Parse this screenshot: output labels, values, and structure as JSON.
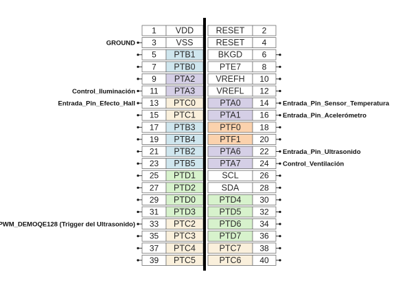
{
  "colors": {
    "white": "#ffffff",
    "green": "#d7f2cc",
    "lilac": "#d5cfe6",
    "blue": "#cfe6ee",
    "orange": "#fbd2ad",
    "cream": "#faf0dc",
    "border": "#6e6e6e",
    "divider": "#000000"
  },
  "rows": [
    {
      "left_num": "1",
      "left_sig": "VDD",
      "left_color": "white",
      "right_sig": "RESET",
      "right_color": "white",
      "right_num": "2",
      "left_lead": false,
      "right_lead": false,
      "left_ann": "",
      "right_ann": ""
    },
    {
      "left_num": "3",
      "left_sig": "VSS",
      "left_color": "white",
      "right_sig": "RESET",
      "right_color": "white",
      "right_num": "4",
      "left_lead": true,
      "right_lead": false,
      "left_ann": "GROUND",
      "right_ann": ""
    },
    {
      "left_num": "5",
      "left_sig": "PTB1",
      "left_color": "blue",
      "right_sig": "BKGD",
      "right_color": "white",
      "right_num": "6",
      "left_lead": true,
      "right_lead": true,
      "left_ann": "",
      "right_ann": ""
    },
    {
      "left_num": "7",
      "left_sig": "PTB0",
      "left_color": "blue",
      "right_sig": "PTE7",
      "right_color": "white",
      "right_num": "8",
      "left_lead": true,
      "right_lead": true,
      "left_ann": "",
      "right_ann": ""
    },
    {
      "left_num": "9",
      "left_sig": "PTA2",
      "left_color": "lilac",
      "right_sig": "VREFH",
      "right_color": "white",
      "right_num": "10",
      "left_lead": true,
      "right_lead": true,
      "left_ann": "",
      "right_ann": ""
    },
    {
      "left_num": "11",
      "left_sig": "PTA3",
      "left_color": "lilac",
      "right_sig": "VREFL",
      "right_color": "white",
      "right_num": "12",
      "left_lead": true,
      "right_lead": true,
      "left_ann": "Control_Iluminación",
      "right_ann": ""
    },
    {
      "left_num": "13",
      "left_sig": "PTC0",
      "left_color": "cream",
      "right_sig": "PTA0",
      "right_color": "lilac",
      "right_num": "14",
      "left_lead": true,
      "right_lead": true,
      "left_ann": "Entrada_Pin_Efecto_Hall",
      "right_ann": "Entrada_Pin_Sensor_Temperatura"
    },
    {
      "left_num": "15",
      "left_sig": "PTC1",
      "left_color": "cream",
      "right_sig": "PTA1",
      "right_color": "lilac",
      "right_num": "16",
      "left_lead": true,
      "right_lead": true,
      "left_ann": "",
      "right_ann": "Entrada_Pin_Acelerómetro"
    },
    {
      "left_num": "17",
      "left_sig": "PTB3",
      "left_color": "blue",
      "right_sig": "PTF0",
      "right_color": "orange",
      "right_num": "18",
      "left_lead": true,
      "right_lead": true,
      "left_ann": "",
      "right_ann": ""
    },
    {
      "left_num": "19",
      "left_sig": "PTB4",
      "left_color": "blue",
      "right_sig": "PTF1",
      "right_color": "orange",
      "right_num": "20",
      "left_lead": true,
      "right_lead": true,
      "left_ann": "",
      "right_ann": ""
    },
    {
      "left_num": "21",
      "left_sig": "PTB2",
      "left_color": "blue",
      "right_sig": "PTA6",
      "right_color": "lilac",
      "right_num": "22",
      "left_lead": true,
      "right_lead": true,
      "left_ann": "",
      "right_ann": "Entrada_Pin_Ultrasonido"
    },
    {
      "left_num": "23",
      "left_sig": "PTB5",
      "left_color": "blue",
      "right_sig": "PTA7",
      "right_color": "lilac",
      "right_num": "24",
      "left_lead": true,
      "right_lead": true,
      "left_ann": "",
      "right_ann": "Control_Ventilación"
    },
    {
      "left_num": "25",
      "left_sig": "PTD1",
      "left_color": "green",
      "right_sig": "SCL",
      "right_color": "white",
      "right_num": "26",
      "left_lead": true,
      "right_lead": true,
      "left_ann": "",
      "right_ann": ""
    },
    {
      "left_num": "27",
      "left_sig": "PTD2",
      "left_color": "green",
      "right_sig": "SDA",
      "right_color": "white",
      "right_num": "28",
      "left_lead": true,
      "right_lead": true,
      "left_ann": "",
      "right_ann": ""
    },
    {
      "left_num": "29",
      "left_sig": "PTD0",
      "left_color": "green",
      "right_sig": "PTD4",
      "right_color": "green",
      "right_num": "30",
      "left_lead": true,
      "right_lead": true,
      "left_ann": "",
      "right_ann": ""
    },
    {
      "left_num": "31",
      "left_sig": "PTD3",
      "left_color": "green",
      "right_sig": "PTD5",
      "right_color": "green",
      "right_num": "32",
      "left_lead": true,
      "right_lead": true,
      "left_ann": "",
      "right_ann": ""
    },
    {
      "left_num": "33",
      "left_sig": "PTC2",
      "left_color": "cream",
      "right_sig": "PTD6",
      "right_color": "green",
      "right_num": "34",
      "left_lead": true,
      "right_lead": true,
      "left_ann": "PWM_DEMOQE128 (Trigger del Ultrasonido)",
      "right_ann": ""
    },
    {
      "left_num": "35",
      "left_sig": "PTC3",
      "left_color": "cream",
      "right_sig": "PTD7",
      "right_color": "green",
      "right_num": "36",
      "left_lead": true,
      "right_lead": true,
      "left_ann": "",
      "right_ann": ""
    },
    {
      "left_num": "37",
      "left_sig": "PTC4",
      "left_color": "cream",
      "right_sig": "PTC7",
      "right_color": "cream",
      "right_num": "38",
      "left_lead": true,
      "right_lead": true,
      "left_ann": "",
      "right_ann": ""
    },
    {
      "left_num": "39",
      "left_sig": "PTC5",
      "left_color": "cream",
      "right_sig": "PTC6",
      "right_color": "cream",
      "right_num": "40",
      "left_lead": true,
      "right_lead": true,
      "left_ann": "",
      "right_ann": ""
    }
  ]
}
